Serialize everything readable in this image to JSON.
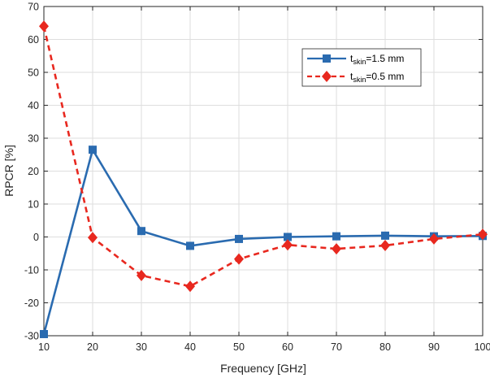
{
  "chart_data": {
    "type": "line",
    "title": "",
    "xlabel": "Frequency [GHz]",
    "ylabel": "RPCR [%]",
    "xlim": [
      10,
      100
    ],
    "ylim": [
      -30,
      70
    ],
    "xticks": [
      10,
      20,
      30,
      40,
      50,
      60,
      70,
      80,
      90,
      100
    ],
    "yticks": [
      -30,
      -20,
      -10,
      0,
      10,
      20,
      30,
      40,
      50,
      60,
      70
    ],
    "grid": true,
    "legend_position": "top-right",
    "x": [
      10,
      20,
      30,
      40,
      50,
      60,
      70,
      80,
      90,
      100
    ],
    "series": [
      {
        "name": "t_skin=1.5 mm",
        "legend_main": "t",
        "legend_sub": "skin",
        "legend_rest": "=1.5 mm",
        "color": "#2a6bb0",
        "line_style": "solid",
        "marker": "square",
        "values": [
          -29.5,
          26.5,
          1.8,
          -2.7,
          -0.6,
          0.0,
          0.2,
          0.4,
          0.2,
          0.3
        ]
      },
      {
        "name": "t_skin=0.5 mm",
        "legend_main": "t",
        "legend_sub": "skin",
        "legend_rest": "=0.5 mm",
        "color": "#e8281f",
        "line_style": "dashed",
        "marker": "diamond",
        "values": [
          64.0,
          -0.2,
          -11.7,
          -15.0,
          -6.7,
          -2.4,
          -3.6,
          -2.6,
          -0.6,
          0.8
        ]
      }
    ]
  }
}
